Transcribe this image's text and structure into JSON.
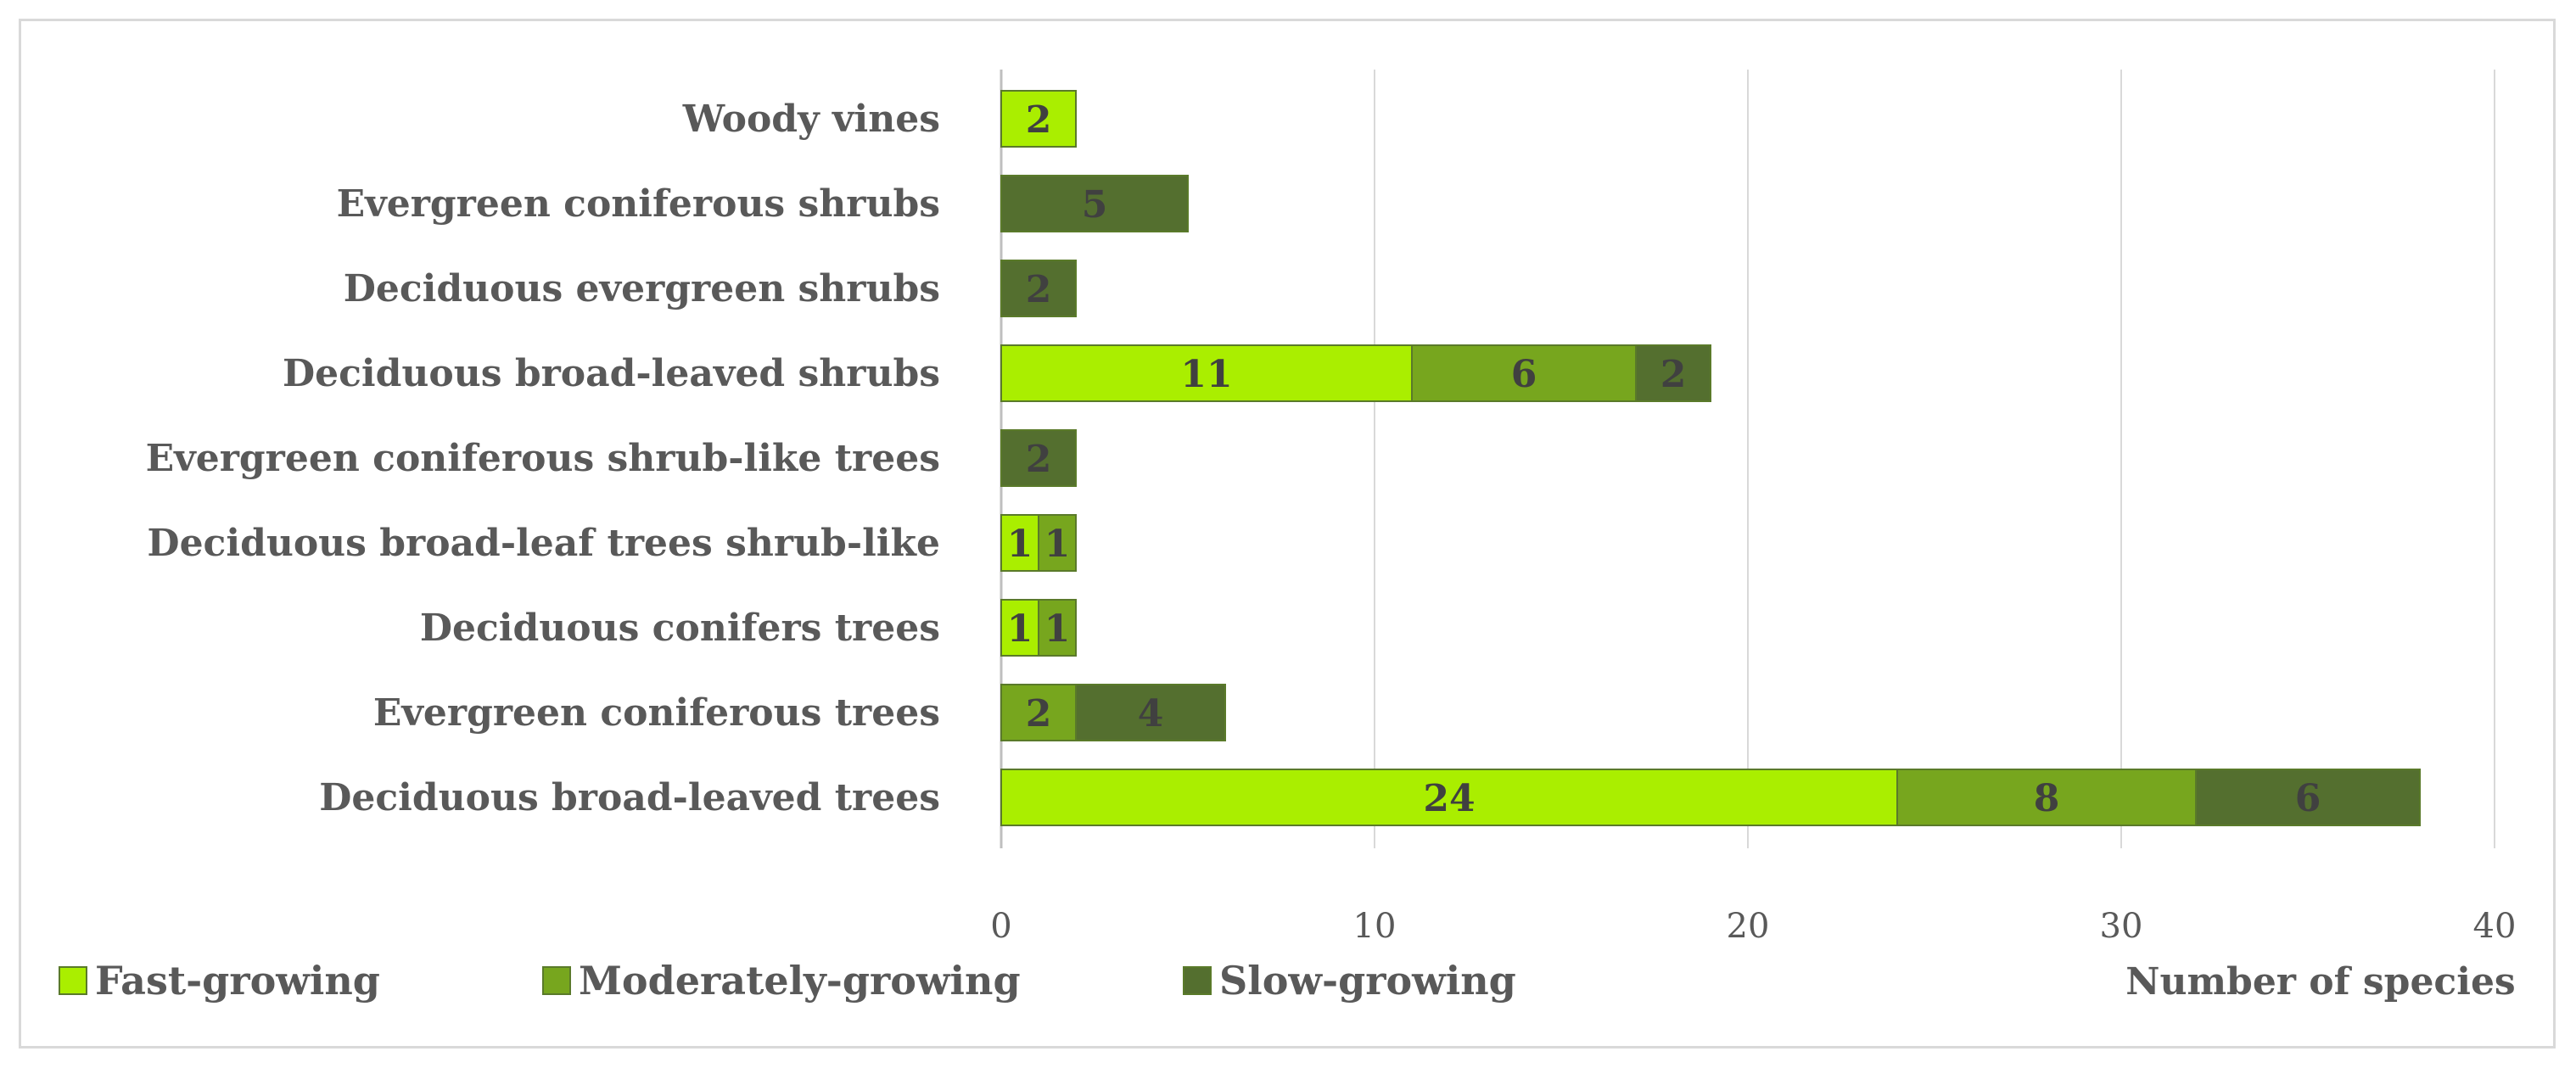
{
  "chart_data": {
    "type": "bar",
    "orientation": "horizontal",
    "stacked": true,
    "categories": [
      "Woody vines",
      "Evergreen coniferous shrubs",
      "Deciduous evergreen shrubs",
      "Deciduous broad-leaved shrubs",
      "Evergreen coniferous shrub-like trees",
      "Deciduous broad-leaf trees shrub-like",
      "Deciduous conifers trees",
      "Evergreen coniferous trees",
      "Deciduous broad-leaved trees"
    ],
    "series": [
      {
        "name": "Fast-growing",
        "color": "#aaee00",
        "values": [
          2,
          0,
          0,
          11,
          0,
          1,
          1,
          0,
          24
        ]
      },
      {
        "name": "Moderately-growing",
        "color": "#77a61e",
        "values": [
          0,
          0,
          0,
          6,
          0,
          1,
          1,
          2,
          8
        ]
      },
      {
        "name": "Slow-growing",
        "color": "#546f2f",
        "values": [
          0,
          5,
          2,
          2,
          2,
          0,
          0,
          4,
          6
        ]
      }
    ],
    "xlabel": "Number of species",
    "xlim": [
      0,
      40
    ],
    "xticks": [
      0,
      10,
      20,
      30,
      40
    ],
    "grid": true,
    "legend_position": "bottom-left"
  }
}
